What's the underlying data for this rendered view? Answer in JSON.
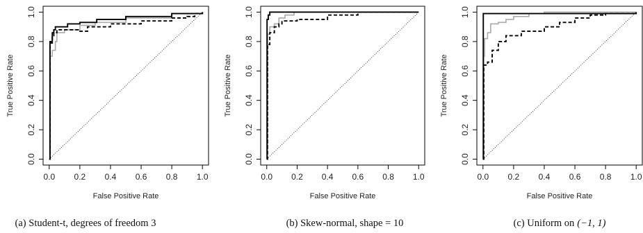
{
  "chart_data": [
    {
      "type": "line",
      "caption": "(a) Student-t, degrees of freedom 3",
      "xlabel": "False Positive Rate",
      "ylabel": "True Positive Rate",
      "xlim": [
        0,
        1
      ],
      "ylim": [
        0,
        1
      ],
      "x_ticks": [
        "0.0",
        "0.2",
        "0.4",
        "0.6",
        "0.8",
        "1.0"
      ],
      "y_ticks": [
        "0.0",
        "0.2",
        "0.4",
        "0.6",
        "0.8",
        "1.0"
      ],
      "diagonal": true,
      "series": [
        {
          "style": "solid-black",
          "color": "#000000",
          "points": [
            [
              0,
              0
            ],
            [
              0.005,
              0.8
            ],
            [
              0.02,
              0.86
            ],
            [
              0.03,
              0.88
            ],
            [
              0.04,
              0.9
            ],
            [
              0.1,
              0.9
            ],
            [
              0.12,
              0.92
            ],
            [
              0.2,
              0.93
            ],
            [
              0.31,
              0.95
            ],
            [
              0.5,
              0.97
            ],
            [
              0.8,
              0.99
            ],
            [
              1,
              1
            ]
          ]
        },
        {
          "style": "solid-gray",
          "color": "#aaaaaa",
          "points": [
            [
              0,
              0
            ],
            [
              0.005,
              0.7
            ],
            [
              0.02,
              0.74
            ],
            [
              0.04,
              0.8
            ],
            [
              0.05,
              0.86
            ],
            [
              0.1,
              0.88
            ],
            [
              0.2,
              0.91
            ],
            [
              0.3,
              0.93
            ],
            [
              0.5,
              0.96
            ],
            [
              0.8,
              0.99
            ],
            [
              1,
              1
            ]
          ]
        },
        {
          "style": "dashed-black",
          "color": "#000000",
          "points": [
            [
              0,
              0
            ],
            [
              0.005,
              0.79
            ],
            [
              0.02,
              0.84
            ],
            [
              0.03,
              0.86
            ],
            [
              0.05,
              0.88
            ],
            [
              0.12,
              0.88
            ],
            [
              0.2,
              0.87
            ],
            [
              0.25,
              0.9
            ],
            [
              0.4,
              0.92
            ],
            [
              0.6,
              0.94
            ],
            [
              0.8,
              0.96
            ],
            [
              0.9,
              0.97
            ],
            [
              0.95,
              0.99
            ],
            [
              1,
              1
            ]
          ]
        }
      ]
    },
    {
      "type": "line",
      "caption": "(b) Skew-normal, shape = 10",
      "xlabel": "False Positive Rate",
      "ylabel": "True Positive Rate",
      "xlim": [
        0,
        1
      ],
      "ylim": [
        0,
        1
      ],
      "x_ticks": [
        "0.0",
        "0.2",
        "0.4",
        "0.6",
        "0.8",
        "1.0"
      ],
      "y_ticks": [
        "0.0",
        "0.2",
        "0.4",
        "0.6",
        "0.8",
        "1.0"
      ],
      "diagonal": true,
      "series": [
        {
          "style": "solid-black",
          "color": "#000000",
          "points": [
            [
              0,
              0
            ],
            [
              0.002,
              0.95
            ],
            [
              0.01,
              0.98
            ],
            [
              0.02,
              1
            ],
            [
              1,
              1
            ]
          ]
        },
        {
          "style": "solid-gray",
          "color": "#aaaaaa",
          "points": [
            [
              0,
              0
            ],
            [
              0.005,
              0.85
            ],
            [
              0.02,
              0.9
            ],
            [
              0.05,
              0.92
            ],
            [
              0.08,
              0.96
            ],
            [
              0.12,
              0.98
            ],
            [
              0.18,
              1
            ],
            [
              1,
              1
            ]
          ]
        },
        {
          "style": "dashed-black",
          "color": "#000000",
          "points": [
            [
              0,
              0
            ],
            [
              0.005,
              0.78
            ],
            [
              0.02,
              0.86
            ],
            [
              0.05,
              0.9
            ],
            [
              0.08,
              0.92
            ],
            [
              0.1,
              0.94
            ],
            [
              0.2,
              0.95
            ],
            [
              0.4,
              0.98
            ],
            [
              0.6,
              1
            ],
            [
              1,
              1
            ]
          ]
        }
      ]
    },
    {
      "type": "line",
      "caption": "(c) Uniform on",
      "caption_math": "(−1, 1)",
      "xlabel": "False Positive Rate",
      "ylabel": "True Positive Rate",
      "xlim": [
        0,
        1
      ],
      "ylim": [
        0,
        1
      ],
      "x_ticks": [
        "0.0",
        "0.2",
        "0.4",
        "0.6",
        "0.8",
        "1.0"
      ],
      "y_ticks": [
        "0.0",
        "0.2",
        "0.4",
        "0.6",
        "0.8",
        "1.0"
      ],
      "diagonal": true,
      "series": [
        {
          "style": "solid-black",
          "color": "#000000",
          "points": [
            [
              0,
              0
            ],
            [
              0.002,
              0.99
            ],
            [
              0.1,
              0.99
            ],
            [
              1,
              1
            ]
          ]
        },
        {
          "style": "solid-gray",
          "color": "#aaaaaa",
          "points": [
            [
              0,
              0
            ],
            [
              0.005,
              0.7
            ],
            [
              0.01,
              0.82
            ],
            [
              0.03,
              0.86
            ],
            [
              0.05,
              0.92
            ],
            [
              0.1,
              0.93
            ],
            [
              0.15,
              0.95
            ],
            [
              0.2,
              0.97
            ],
            [
              0.3,
              0.99
            ],
            [
              0.4,
              1
            ],
            [
              1,
              1
            ]
          ]
        },
        {
          "style": "dashed-black",
          "color": "#000000",
          "points": [
            [
              0,
              0
            ],
            [
              0.005,
              0.64
            ],
            [
              0.03,
              0.66
            ],
            [
              0.06,
              0.74
            ],
            [
              0.1,
              0.8
            ],
            [
              0.15,
              0.84
            ],
            [
              0.25,
              0.87
            ],
            [
              0.4,
              0.9
            ],
            [
              0.5,
              0.93
            ],
            [
              0.6,
              0.96
            ],
            [
              0.7,
              0.98
            ],
            [
              0.8,
              0.99
            ],
            [
              1,
              1
            ]
          ]
        }
      ]
    }
  ]
}
